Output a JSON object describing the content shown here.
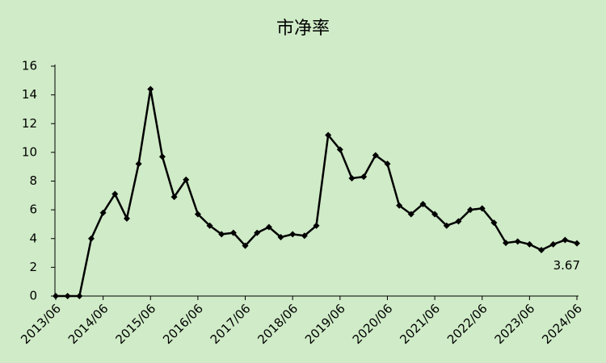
{
  "chart_data": {
    "type": "line",
    "title": "市净率",
    "categories": [
      "2013/06",
      null,
      null,
      null,
      "2014/06",
      null,
      null,
      null,
      "2015/06",
      null,
      null,
      null,
      "2016/06",
      null,
      null,
      null,
      "2017/06",
      null,
      null,
      null,
      "2018/06",
      null,
      null,
      null,
      "2019/06",
      null,
      null,
      null,
      "2020/06",
      null,
      null,
      null,
      "2021/06",
      null,
      null,
      null,
      "2022/06",
      null,
      null,
      null,
      "2023/06",
      null,
      null,
      null,
      "2024/06"
    ],
    "values": [
      0,
      0,
      0,
      4.0,
      5.8,
      7.1,
      5.4,
      9.2,
      14.4,
      9.7,
      6.9,
      8.1,
      5.7,
      4.9,
      4.3,
      4.4,
      3.5,
      4.4,
      4.8,
      4.1,
      4.3,
      4.2,
      4.9,
      11.2,
      10.2,
      8.2,
      8.3,
      9.8,
      9.2,
      6.3,
      5.7,
      6.4,
      5.7,
      4.9,
      5.2,
      6.0,
      6.1,
      5.1,
      3.7,
      3.8,
      3.6,
      3.2,
      3.6,
      3.9,
      3.67
    ],
    "color": "#000000",
    "ylim": [
      0,
      16
    ],
    "yticks": [
      0,
      2,
      4,
      6,
      8,
      10,
      12,
      14,
      16
    ],
    "grid": false
  }
}
